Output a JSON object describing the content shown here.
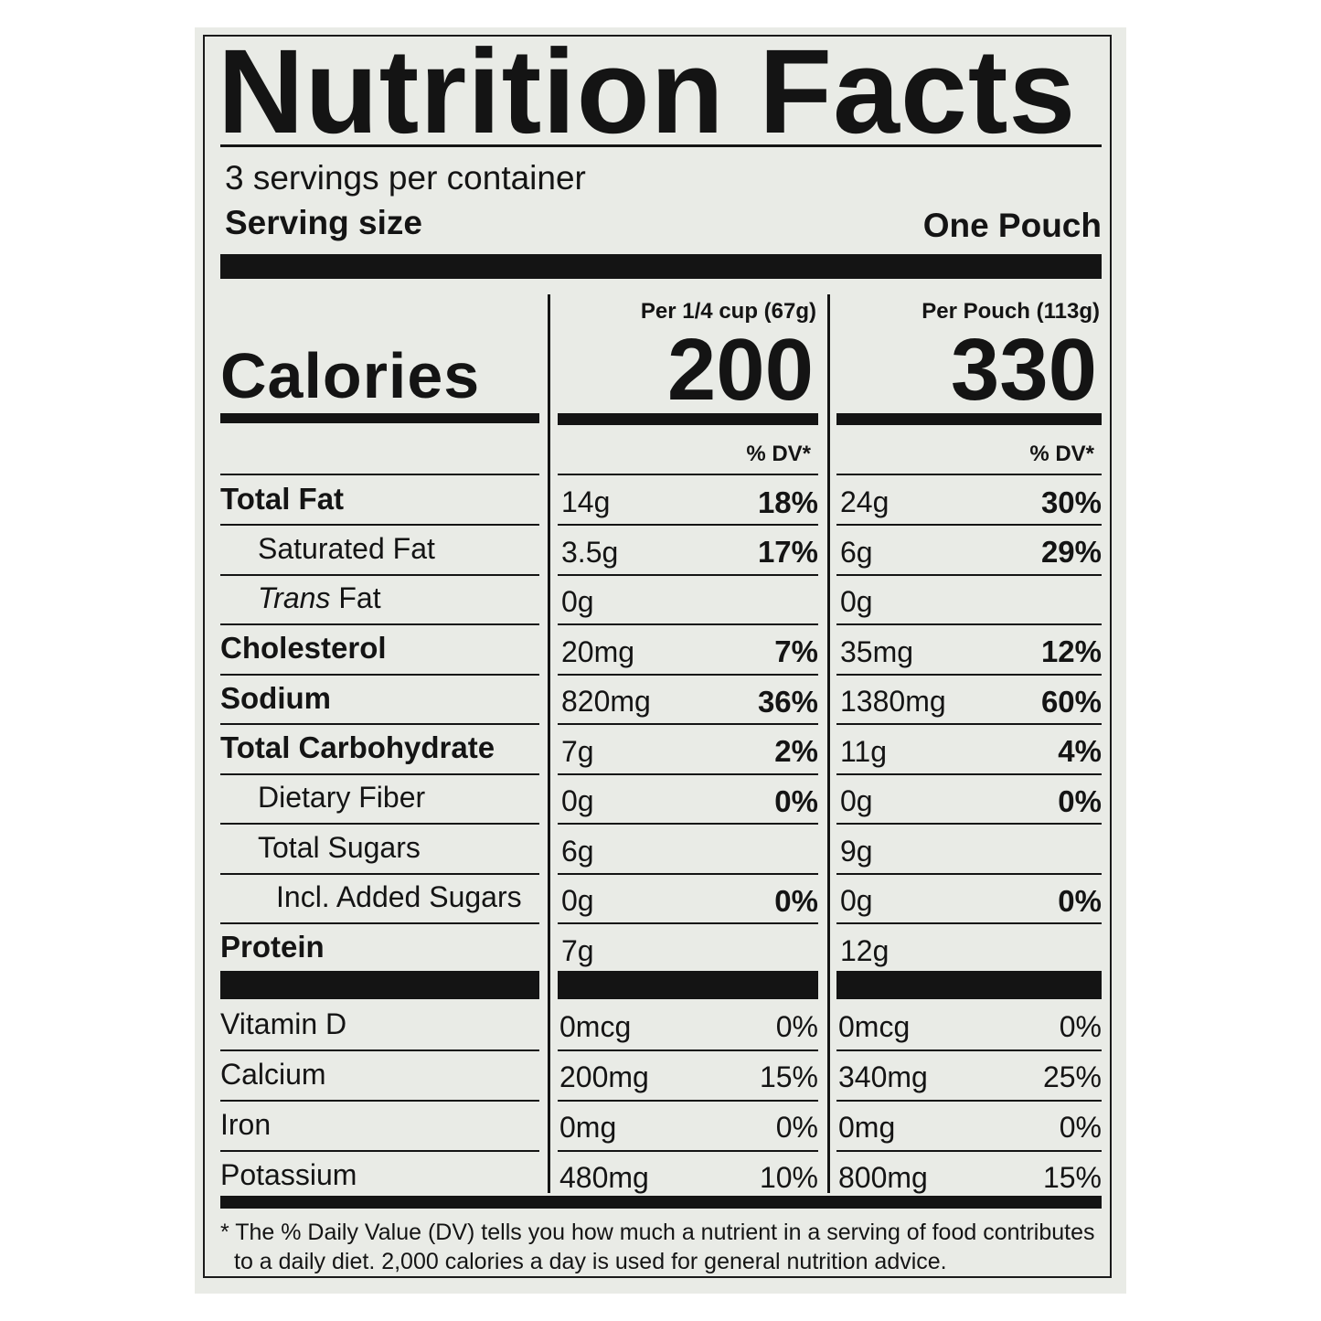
{
  "title": "Nutrition Facts",
  "servings": "3 servings per container",
  "serving_size": {
    "label": "Serving size",
    "value": "One Pouch"
  },
  "calories_label": "Calories",
  "columns": [
    {
      "header": "Per 1/4 cup (67g)",
      "calories": "200",
      "dv_header": "% DV*"
    },
    {
      "header": "Per Pouch (113g)",
      "calories": "330",
      "dv_header": "% DV*"
    }
  ],
  "nutrients": [
    {
      "name": "Total Fat",
      "bold": true,
      "indent": 0,
      "values": [
        {
          "amount": "14g",
          "dv": "18%"
        },
        {
          "amount": "24g",
          "dv": "30%"
        }
      ]
    },
    {
      "name": "Saturated Fat",
      "bold": false,
      "indent": 1,
      "values": [
        {
          "amount": "3.5g",
          "dv": "17%"
        },
        {
          "amount": "6g",
          "dv": "29%"
        }
      ]
    },
    {
      "italic": "Trans",
      "name": "Fat",
      "bold": false,
      "indent": 1,
      "values": [
        {
          "amount": "0g"
        },
        {
          "amount": "0g"
        }
      ]
    },
    {
      "name": "Cholesterol",
      "bold": true,
      "indent": 0,
      "values": [
        {
          "amount": "20mg",
          "dv": "7%"
        },
        {
          "amount": "35mg",
          "dv": "12%"
        }
      ]
    },
    {
      "name": "Sodium",
      "bold": true,
      "indent": 0,
      "values": [
        {
          "amount": "820mg",
          "dv": "36%"
        },
        {
          "amount": "1380mg",
          "dv": "60%"
        }
      ]
    },
    {
      "name": "Total Carbohydrate",
      "bold": true,
      "indent": 0,
      "values": [
        {
          "amount": "7g",
          "dv": "2%"
        },
        {
          "amount": "11g",
          "dv": "4%"
        }
      ]
    },
    {
      "name": "Dietary Fiber",
      "bold": false,
      "indent": 1,
      "values": [
        {
          "amount": "0g",
          "dv": "0%"
        },
        {
          "amount": "0g",
          "dv": "0%"
        }
      ]
    },
    {
      "name": "Total Sugars",
      "bold": false,
      "indent": 1,
      "values": [
        {
          "amount": "6g"
        },
        {
          "amount": "9g"
        }
      ]
    },
    {
      "name": "Incl. Added Sugars",
      "bold": false,
      "indent": 2,
      "values": [
        {
          "amount": "0g",
          "dv": "0%"
        },
        {
          "amount": "0g",
          "dv": "0%"
        }
      ]
    },
    {
      "name": "Protein",
      "bold": true,
      "indent": 0,
      "values": [
        {
          "amount": "7g"
        },
        {
          "amount": "12g"
        }
      ]
    }
  ],
  "vitamins": [
    {
      "name": "Vitamin D",
      "values": [
        {
          "amount": "0mcg",
          "dv": "0%"
        },
        {
          "amount": "0mcg",
          "dv": "0%"
        }
      ]
    },
    {
      "name": "Calcium",
      "values": [
        {
          "amount": "200mg",
          "dv": "15%"
        },
        {
          "amount": "340mg",
          "dv": "25%"
        }
      ]
    },
    {
      "name": "Iron",
      "values": [
        {
          "amount": "0mg",
          "dv": "0%"
        },
        {
          "amount": "0mg",
          "dv": "0%"
        }
      ]
    },
    {
      "name": "Potassium",
      "values": [
        {
          "amount": "480mg",
          "dv": "10%"
        },
        {
          "amount": "800mg",
          "dv": "15%"
        }
      ]
    }
  ],
  "footnote": [
    "* The % Daily Value (DV) tells you how much a nutrient in a serving of food contributes",
    "to a daily diet. 2,000 calories a day is used for general nutrition advice."
  ]
}
